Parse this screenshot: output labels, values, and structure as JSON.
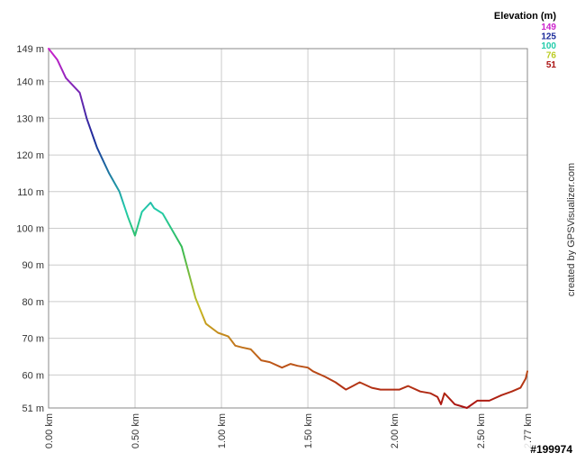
{
  "chart_data": {
    "type": "line",
    "x_unit": "km",
    "y_unit": "m",
    "xlim": [
      0,
      2.77
    ],
    "ylim": [
      51,
      149
    ],
    "x_ticks": [
      {
        "value": 0,
        "label": "0.00 km"
      },
      {
        "value": 0.5,
        "label": "0.50 km"
      },
      {
        "value": 1.0,
        "label": "1.00 km"
      },
      {
        "value": 1.5,
        "label": "1.50 km"
      },
      {
        "value": 2.0,
        "label": "2.00 km"
      },
      {
        "value": 2.5,
        "label": "2.50 km"
      },
      {
        "value": 2.77,
        "label": "2.77 km"
      }
    ],
    "y_ticks": [
      {
        "value": 149,
        "label": "149 m"
      },
      {
        "value": 140,
        "label": "140 m"
      },
      {
        "value": 130,
        "label": "130 m"
      },
      {
        "value": 120,
        "label": "120 m"
      },
      {
        "value": 110,
        "label": "110 m"
      },
      {
        "value": 100,
        "label": "100 m"
      },
      {
        "value": 90,
        "label": "90 m"
      },
      {
        "value": 80,
        "label": "80 m"
      },
      {
        "value": 70,
        "label": "70 m"
      },
      {
        "value": 60,
        "label": "60 m"
      },
      {
        "value": 51,
        "label": "51 m"
      }
    ],
    "grid": true,
    "legend": {
      "title": "Elevation (m)",
      "position": "top-right",
      "entries": [
        {
          "label": "149",
          "value": 149,
          "color": "#cc22cc"
        },
        {
          "label": "125",
          "value": 125,
          "color": "#1a2a9a"
        },
        {
          "label": "100",
          "value": 100,
          "color": "#22ccaa"
        },
        {
          "label": "76",
          "value": 76,
          "color": "#bbcc22"
        },
        {
          "label": "51",
          "value": 51,
          "color": "#aa1111"
        }
      ]
    },
    "series": [
      {
        "x": [
          0.0,
          0.05,
          0.1,
          0.18,
          0.22,
          0.28,
          0.35,
          0.41,
          0.46,
          0.5,
          0.54,
          0.59,
          0.61,
          0.66,
          0.77,
          0.85,
          0.91,
          0.98,
          1.04,
          1.08,
          1.12,
          1.17,
          1.23,
          1.28,
          1.35,
          1.4,
          1.44,
          1.5,
          1.53,
          1.6,
          1.66,
          1.72,
          1.76,
          1.8,
          1.87,
          1.92,
          2.03,
          2.08,
          2.15,
          2.21,
          2.25,
          2.27,
          2.29,
          2.31,
          2.35,
          2.42,
          2.48,
          2.55,
          2.62,
          2.68,
          2.73,
          2.76,
          2.77
        ],
        "y": [
          149,
          146,
          141,
          137,
          130,
          122,
          115,
          110,
          103,
          98,
          104.5,
          107,
          105.5,
          104,
          95,
          81,
          74,
          71.5,
          70.5,
          68,
          67.5,
          67,
          64,
          63.5,
          62,
          63,
          62.5,
          62,
          61,
          59.5,
          58,
          56,
          57,
          58,
          56.5,
          56,
          56,
          57,
          55.5,
          55,
          54,
          52,
          55,
          54,
          52,
          51,
          53,
          53,
          54.5,
          55.5,
          56.5,
          59,
          61
        ]
      }
    ]
  },
  "credit": "created by GPSVisualizer.com",
  "watermark": "#199974"
}
